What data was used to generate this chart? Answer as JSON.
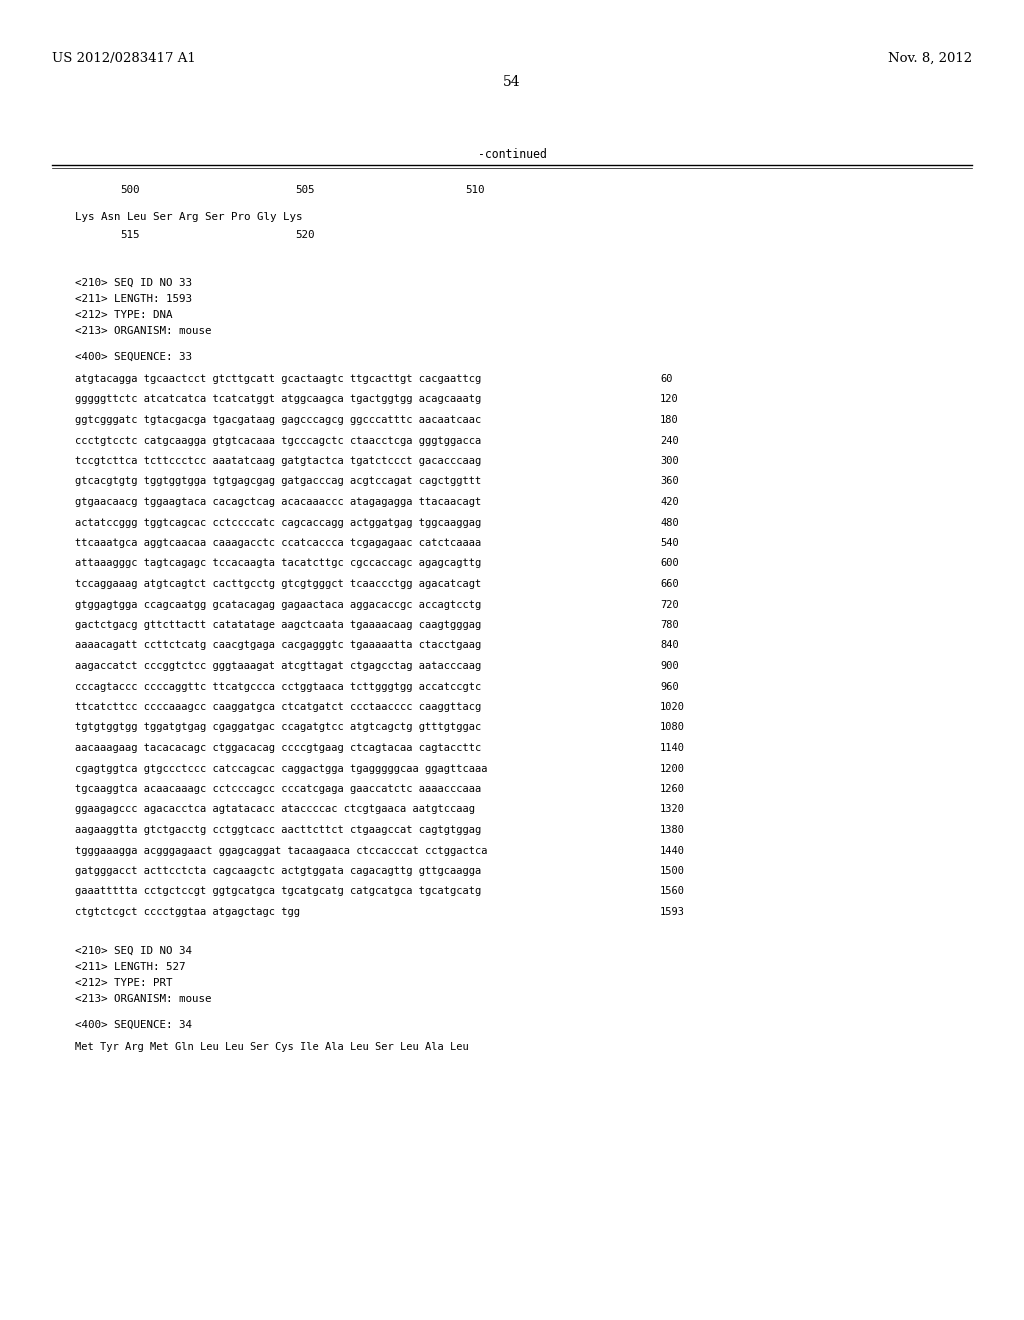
{
  "header_left": "US 2012/0283417 A1",
  "header_right": "Nov. 8, 2012",
  "page_number": "54",
  "continued_label": "-continued",
  "background_color": "#ffffff",
  "text_color": "#000000",
  "header_fontsize": 9.5,
  "body_fontsize": 7.8,
  "mono_fontsize": 7.5,
  "ruler_numbers": [
    "500",
    "505",
    "510"
  ],
  "seq_info": [
    "<210> SEQ ID NO 33",
    "<211> LENGTH: 1593",
    "<212> TYPE: DNA",
    "<213> ORGANISM: mouse"
  ],
  "seq_label": "<400> SEQUENCE: 33",
  "seq_info2": [
    "<210> SEQ ID NO 34",
    "<211> LENGTH: 527",
    "<212> TYPE: PRT",
    "<213> ORGANISM: mouse"
  ],
  "seq_label2": "<400> SEQUENCE: 34",
  "last_line": "Met Tyr Arg Met Gln Leu Leu Ser Cys Ile Ala Leu Ser Leu Ala Leu"
}
